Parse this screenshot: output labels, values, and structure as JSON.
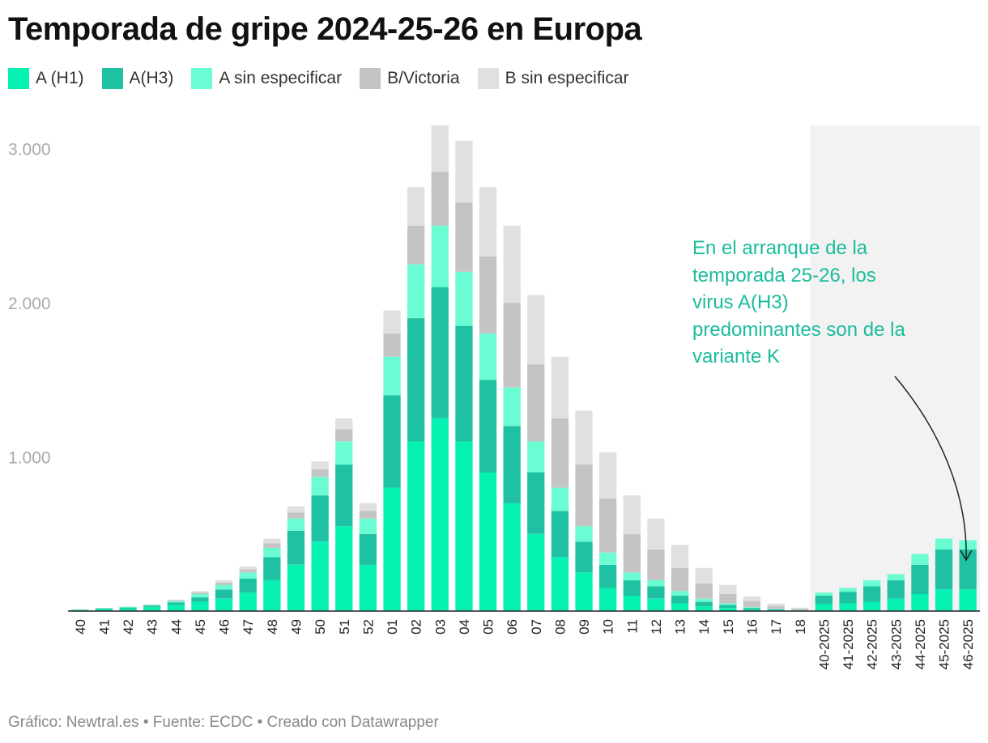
{
  "title": "Temporada de gripe 2024-25-26 en Europa",
  "footer": "Gráfico: Newtral.es • Fuente: ECDC • Creado con Datawrapper",
  "annotation": "En el arranque de la temporada 25-26, los virus A(H3) predominantes son de la variante K",
  "colors": {
    "a_h1": "#06f2b3",
    "a_h3": "#1ec2a2",
    "a_unspec": "#6bfcd3",
    "b_victoria": "#c4c4c4",
    "b_unspec": "#e0e0e0",
    "highlight_bg": "#f2f2f2",
    "annotation": "#1abc9c",
    "tick_label": "#aaaaaa"
  },
  "chart_data": {
    "type": "bar",
    "stacked": true,
    "categories": [
      "40",
      "41",
      "42",
      "43",
      "44",
      "45",
      "46",
      "47",
      "48",
      "49",
      "50",
      "51",
      "52",
      "01",
      "02",
      "03",
      "04",
      "05",
      "06",
      "07",
      "08",
      "09",
      "10",
      "11",
      "12",
      "13",
      "14",
      "15",
      "16",
      "17",
      "18",
      "40-2025",
      "41-2025",
      "42-2025",
      "43-2025",
      "44-2025",
      "45-2025",
      "46-2025"
    ],
    "ylim": [
      0,
      3150
    ],
    "yticks": [
      {
        "value": 1000,
        "label": "1.000"
      },
      {
        "value": 2000,
        "label": "2.000"
      },
      {
        "value": 3000,
        "label": "3.000"
      }
    ],
    "highlight_categories": [
      "40-2025",
      "41-2025",
      "42-2025",
      "43-2025",
      "44-2025",
      "45-2025",
      "46-2025"
    ],
    "legend_position": "top-left",
    "series": [
      {
        "name": "A (H1)",
        "color": "#06f2b3",
        "values": [
          5,
          10,
          15,
          25,
          40,
          60,
          80,
          120,
          200,
          300,
          450,
          550,
          300,
          800,
          1100,
          1250,
          1100,
          900,
          700,
          500,
          350,
          250,
          150,
          100,
          80,
          50,
          30,
          20,
          10,
          5,
          3,
          45,
          50,
          60,
          80,
          110,
          140,
          140
        ]
      },
      {
        "name": "A(H3)",
        "color": "#1ec2a2",
        "values": [
          3,
          7,
          8,
          10,
          15,
          30,
          60,
          90,
          150,
          220,
          300,
          400,
          200,
          600,
          800,
          850,
          750,
          600,
          500,
          400,
          300,
          200,
          150,
          100,
          80,
          50,
          30,
          20,
          10,
          5,
          2,
          55,
          75,
          100,
          120,
          190,
          260,
          260
        ]
      },
      {
        "name": "A sin especificar",
        "color": "#6bfcd3",
        "values": [
          2,
          3,
          5,
          5,
          10,
          20,
          30,
          40,
          60,
          80,
          120,
          150,
          100,
          250,
          350,
          400,
          350,
          300,
          250,
          200,
          150,
          100,
          80,
          50,
          40,
          30,
          20,
          10,
          5,
          3,
          2,
          20,
          25,
          40,
          40,
          70,
          70,
          60
        ]
      },
      {
        "name": "B/Victoria",
        "color": "#c4c4c4",
        "values": [
          0,
          0,
          0,
          3,
          5,
          10,
          15,
          20,
          30,
          40,
          50,
          80,
          50,
          150,
          250,
          350,
          450,
          500,
          550,
          500,
          450,
          400,
          350,
          250,
          200,
          150,
          100,
          60,
          40,
          20,
          10,
          0,
          0,
          0,
          0,
          0,
          0,
          0
        ]
      },
      {
        "name": "B sin especificar",
        "color": "#e0e0e0",
        "values": [
          0,
          0,
          0,
          2,
          5,
          10,
          15,
          20,
          30,
          40,
          50,
          70,
          50,
          150,
          250,
          300,
          400,
          450,
          500,
          450,
          400,
          350,
          300,
          250,
          200,
          150,
          100,
          60,
          30,
          15,
          5,
          0,
          0,
          0,
          0,
          0,
          0,
          0
        ]
      }
    ]
  }
}
